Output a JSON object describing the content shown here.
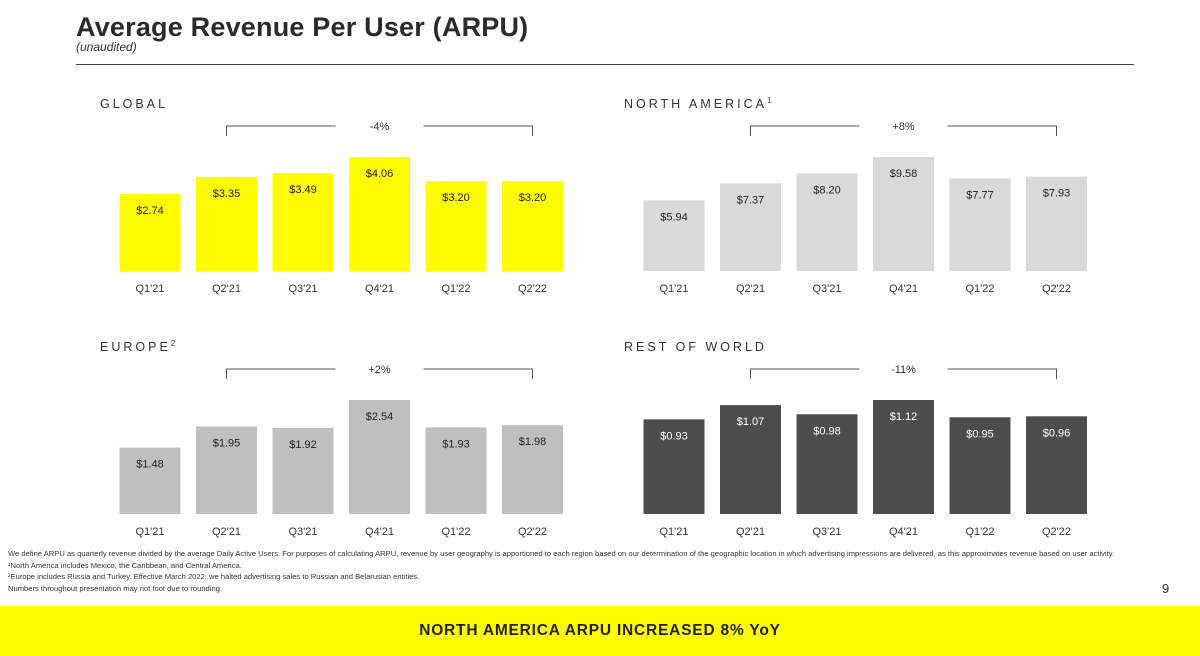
{
  "header": {
    "title": "Average Revenue Per User (ARPU)",
    "subtitle": "(unaudited)"
  },
  "colors": {
    "global": "#fffc00",
    "north_america": "#d9d9d9",
    "europe": "#bfbfbf",
    "rest_of_world": "#4d4d4d",
    "banner": "#fffc00"
  },
  "chart_data": [
    {
      "type": "bar",
      "title": "GLOBAL",
      "title_sup": "",
      "categories": [
        "Q1'21",
        "Q2'21",
        "Q3'21",
        "Q4'21",
        "Q1'22",
        "Q2'22"
      ],
      "values": [
        2.74,
        3.35,
        3.49,
        4.06,
        3.2,
        3.2
      ],
      "value_labels": [
        "$2.74",
        "$3.35",
        "$3.49",
        "$4.06",
        "$3.20",
        "$3.20"
      ],
      "ymax": 4.06,
      "annotation": "-4%",
      "annotation_span": [
        "Q2'21",
        "Q2'22"
      ],
      "color_key": "global",
      "label_color": "#222222"
    },
    {
      "type": "bar",
      "title": "NORTH AMERICA",
      "title_sup": "1",
      "categories": [
        "Q1'21",
        "Q2'21",
        "Q3'21",
        "Q4'21",
        "Q1'22",
        "Q2'22"
      ],
      "values": [
        5.94,
        7.37,
        8.2,
        9.58,
        7.77,
        7.93
      ],
      "value_labels": [
        "$5.94",
        "$7.37",
        "$8.20",
        "$9.58",
        "$7.77",
        "$7.93"
      ],
      "ymax": 9.58,
      "annotation": "+8%",
      "annotation_span": [
        "Q2'21",
        "Q2'22"
      ],
      "color_key": "north_america",
      "label_color": "#222222"
    },
    {
      "type": "bar",
      "title": "EUROPE",
      "title_sup": "2",
      "categories": [
        "Q1'21",
        "Q2'21",
        "Q3'21",
        "Q4'21",
        "Q1'22",
        "Q2'22"
      ],
      "values": [
        1.48,
        1.95,
        1.92,
        2.54,
        1.93,
        1.98
      ],
      "value_labels": [
        "$1.48",
        "$1.95",
        "$1.92",
        "$2.54",
        "$1.93",
        "$1.98"
      ],
      "ymax": 2.54,
      "annotation": "+2%",
      "annotation_span": [
        "Q2'21",
        "Q2'22"
      ],
      "color_key": "europe",
      "label_color": "#222222"
    },
    {
      "type": "bar",
      "title": "REST OF WORLD",
      "title_sup": "",
      "categories": [
        "Q1'21",
        "Q2'21",
        "Q3'21",
        "Q4'21",
        "Q1'22",
        "Q2'22"
      ],
      "values": [
        0.93,
        1.07,
        0.98,
        1.12,
        0.95,
        0.96
      ],
      "value_labels": [
        "$0.93",
        "$1.07",
        "$0.98",
        "$1.12",
        "$0.95",
        "$0.96"
      ],
      "ymax": 1.12,
      "annotation": "-11%",
      "annotation_span": [
        "Q2'21",
        "Q2'22"
      ],
      "color_key": "rest_of_world",
      "label_color": "#ffffff"
    }
  ],
  "footnotes": [
    "We define ARPU as quarterly revenue divided by the average Daily Active Users. For purposes of calculating ARPU, revenue by user geography is apportioned to each region based on our determination of the geographic location in which advertising impressions are delivered, as this approximates revenue based on user activity.",
    "¹North America includes Mexico, the Caribbean, and Central America.",
    "²Europe includes Russia and Turkey. Effective March 2022, we halted advertising sales to Russian and Belarusian entities.",
    "Numbers throughout presentation may not foot due to rounding."
  ],
  "page_number": "9",
  "banner_text": "NORTH AMERICA ARPU INCREASED 8% YoY"
}
